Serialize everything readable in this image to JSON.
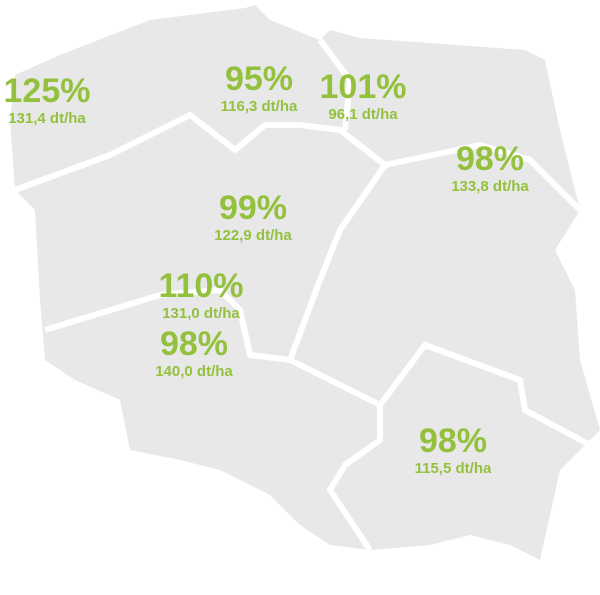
{
  "regions": [
    {
      "percent": "125%",
      "yield": "131,4 dt/ha"
    },
    {
      "percent": "95%",
      "yield": "116,3 dt/ha"
    },
    {
      "percent": "101%",
      "yield": "96,1 dt/ha"
    },
    {
      "percent": "98%",
      "yield": "133,8 dt/ha"
    },
    {
      "percent": "99%",
      "yield": "122,9 dt/ha"
    },
    {
      "percent": "110%",
      "yield": "131,0 dt/ha"
    },
    {
      "percent": "98%",
      "yield": "140,0 dt/ha"
    },
    {
      "percent": "98%",
      "yield": "115,5 dt/ha"
    }
  ]
}
